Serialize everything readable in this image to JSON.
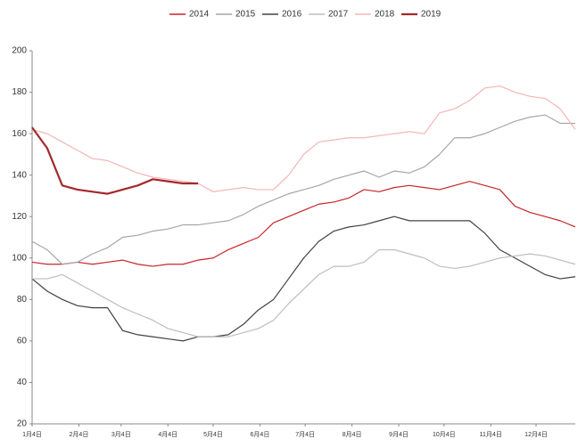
{
  "chart_data": {
    "type": "line",
    "x": [
      4,
      14,
      24,
      34,
      44,
      54,
      64,
      74,
      84,
      94,
      104,
      114,
      124,
      134,
      144,
      154,
      164,
      174,
      184,
      194,
      204,
      214,
      224,
      234,
      244,
      254,
      264,
      274,
      284,
      294,
      304,
      314,
      324,
      334,
      344,
      354,
      364
    ],
    "series": [
      {
        "name": "2014",
        "color": "#c8242c",
        "width": 1.2,
        "values": [
          98,
          97,
          97,
          98,
          97,
          98,
          99,
          97,
          96,
          97,
          97,
          99,
          100,
          104,
          107,
          110,
          117,
          120,
          123,
          126,
          127,
          129,
          133,
          132,
          134,
          135,
          134,
          133,
          135,
          137,
          135,
          133,
          125,
          122,
          120,
          118,
          115
        ]
      },
      {
        "name": "2015",
        "color": "#a6a6a6",
        "width": 1.2,
        "values": [
          108,
          104,
          97,
          98,
          102,
          105,
          110,
          111,
          113,
          114,
          116,
          116,
          117,
          118,
          121,
          125,
          128,
          131,
          133,
          135,
          138,
          140,
          142,
          139,
          142,
          141,
          144,
          150,
          158,
          158,
          160,
          163,
          166,
          168,
          169,
          165,
          165
        ]
      },
      {
        "name": "2016",
        "color": "#404040",
        "width": 1.2,
        "values": [
          90,
          84,
          80,
          77,
          76,
          76,
          65,
          63,
          62,
          61,
          60,
          62,
          62,
          63,
          68,
          75,
          80,
          90,
          100,
          108,
          113,
          115,
          116,
          118,
          120,
          118,
          118,
          118,
          118,
          118,
          112,
          104,
          100,
          96,
          92,
          90,
          91
        ]
      },
      {
        "name": "2017",
        "color": "#bdbdbd",
        "width": 1.2,
        "values": [
          90,
          90,
          92,
          88,
          84,
          80,
          76,
          73,
          70,
          66,
          64,
          62,
          62,
          62,
          64,
          66,
          70,
          78,
          85,
          92,
          96,
          96,
          98,
          104,
          104,
          102,
          100,
          96,
          95,
          96,
          98,
          100,
          101,
          102,
          101,
          99,
          97
        ]
      },
      {
        "name": "2018",
        "color": "#f5b5b5",
        "width": 1.2,
        "values": [
          162,
          160,
          156,
          152,
          148,
          147,
          144,
          141,
          139,
          138,
          137,
          136,
          132,
          133,
          134,
          133,
          133,
          140,
          150,
          156,
          157,
          158,
          158,
          159,
          160,
          161,
          160,
          170,
          172,
          176,
          182,
          183,
          180,
          178,
          177,
          172,
          162
        ]
      },
      {
        "name": "2019",
        "color": "#a3282c",
        "width": 2.2,
        "values": [
          163,
          153,
          135,
          133,
          132,
          131,
          133,
          135,
          138,
          137,
          136,
          136,
          null,
          null,
          null,
          null,
          null,
          null,
          null,
          null,
          null,
          null,
          null,
          null,
          null,
          null,
          null,
          null,
          null,
          null,
          null,
          null,
          null,
          null,
          null,
          null,
          null
        ]
      }
    ],
    "xlim": [
      4,
      364
    ],
    "xticks": [
      {
        "value": 4,
        "label": "1月4日"
      },
      {
        "value": 35,
        "label": "2月4日"
      },
      {
        "value": 63,
        "label": "3月4日"
      },
      {
        "value": 94,
        "label": "4月4日"
      },
      {
        "value": 124,
        "label": "5月4日"
      },
      {
        "value": 155,
        "label": "6月4日"
      },
      {
        "value": 185,
        "label": "7月4日"
      },
      {
        "value": 216,
        "label": "8月4日"
      },
      {
        "value": 247,
        "label": "9月4日"
      },
      {
        "value": 277,
        "label": "10月4日"
      },
      {
        "value": 308,
        "label": "11月4日"
      },
      {
        "value": 338,
        "label": "12月4日"
      }
    ],
    "ylim": [
      20,
      200
    ],
    "yticks": [
      20,
      40,
      60,
      80,
      100,
      120,
      140,
      160,
      180,
      200
    ],
    "legend": "top"
  }
}
